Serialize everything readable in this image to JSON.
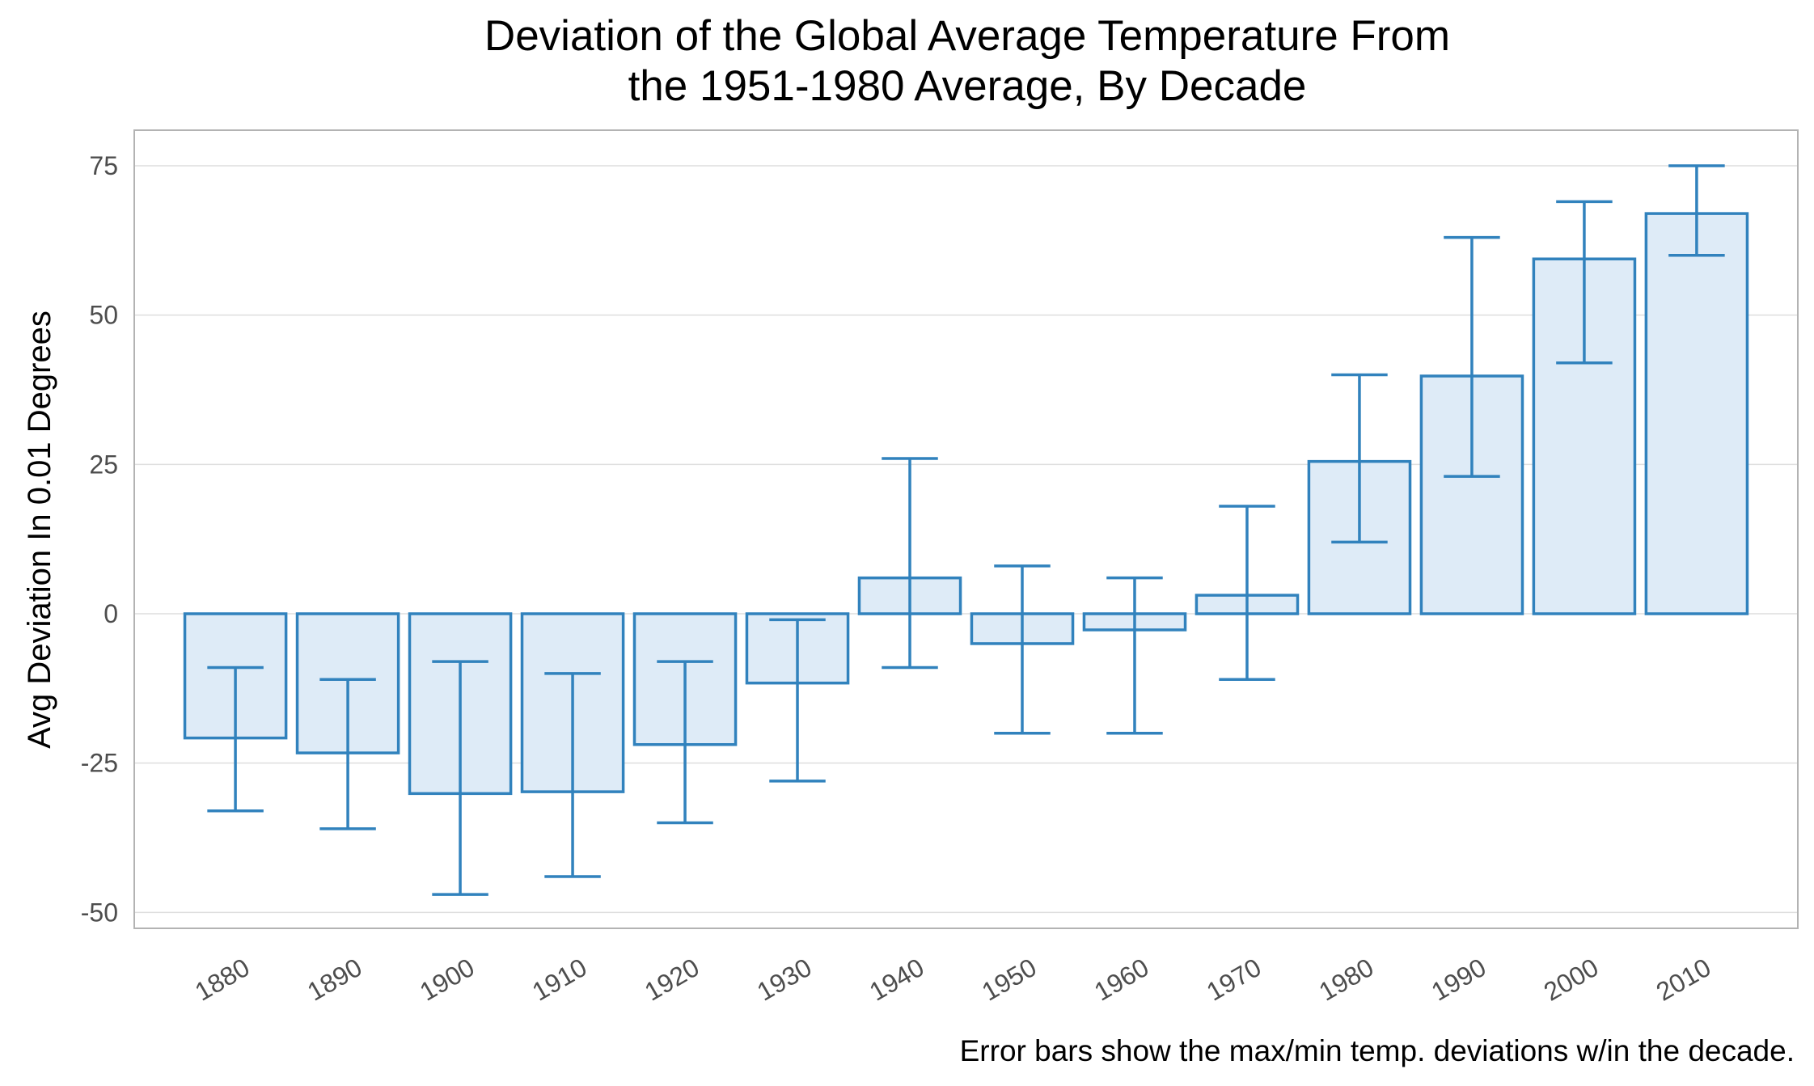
{
  "chart_data": {
    "type": "bar",
    "title_line1": "Deviation of the Global Average Temperature From",
    "title_line2": "the 1951-1980 Average, By Decade",
    "ylabel": "Avg Deviation In 0.01 Degrees",
    "xlabel": "",
    "caption": "Error bars show the max/min temp. deviations w/in the decade.",
    "ylim": [
      -53,
      81
    ],
    "yticks": [
      -50,
      -25,
      0,
      25,
      50,
      75
    ],
    "ytick_labels": [
      "-50",
      "-25",
      "0",
      "25",
      "50",
      "75"
    ],
    "categories": [
      "1880",
      "1890",
      "1900",
      "1910",
      "1920",
      "1930",
      "1940",
      "1950",
      "1960",
      "1970",
      "1980",
      "1990",
      "2000",
      "2010"
    ],
    "values": [
      -20.8,
      -23.3,
      -30.1,
      -29.8,
      -21.9,
      -11.6,
      6.0,
      -5.0,
      -2.7,
      3.1,
      25.5,
      39.8,
      59.4,
      67.0
    ],
    "err_max": [
      -9,
      -11,
      -8,
      -10,
      -8,
      -1,
      26,
      8,
      6,
      18,
      40,
      63,
      69,
      75
    ],
    "err_min": [
      -33,
      -36,
      -47,
      -44,
      -35,
      -28,
      -9,
      -20,
      -20,
      -11,
      12,
      23,
      42,
      60
    ],
    "grid": true,
    "legend": "none",
    "colors": {
      "bar_fill": "#deebf7",
      "bar_stroke": "#3182bd",
      "grid": "#dedede",
      "panel_border": "#b3b3b3"
    }
  }
}
